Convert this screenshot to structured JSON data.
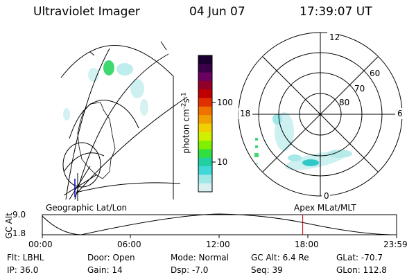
{
  "header": {
    "title": "Ultraviolet Imager",
    "date": "04 Jun 07",
    "time": "17:39:07 UT"
  },
  "colorbar": {
    "unit_label": "photon cm",
    "unit_exp1": "-2",
    "unit_s": "s",
    "unit_exp2": "-1",
    "ticks": [
      "100",
      "10"
    ],
    "colors": [
      "#1a0030",
      "#3a0048",
      "#6a0060",
      "#900028",
      "#c00000",
      "#e03000",
      "#f07000",
      "#f0a000",
      "#f0d000",
      "#d0f000",
      "#80f000",
      "#30e040",
      "#20d0a0",
      "#40d8d8",
      "#a0e8e8",
      "#d8f0f0"
    ]
  },
  "polar_plot": {
    "mlt_labels": [
      "12",
      "18",
      "6",
      "0"
    ],
    "lat_labels": [
      "60",
      "70",
      "80"
    ]
  },
  "altitude_panel": {
    "axis_label": "GC Alt",
    "left_title": "Geographic Lat/Lon",
    "right_title": "Apex MLat/MLT",
    "y_ticks": [
      "9.0",
      "1.8"
    ],
    "x_ticks": [
      "00:00",
      "06:00",
      "12:00",
      "18:00",
      "23:59"
    ],
    "marker_time_fraction": 0.735,
    "marker_color": "#c00000"
  },
  "footer": {
    "filter": "Flt: LBHL",
    "ip": "IP: 36.0",
    "door": "Door: Open",
    "gain": "Gain: 14",
    "mode": "Mode: Normal",
    "dsp": "Dsp:    -7.0",
    "gc_alt": "GC Alt: 6.4 Re",
    "seq": "Seq: 39",
    "glat": "GLat: -70.7",
    "glon": "GLon: 112.8"
  }
}
